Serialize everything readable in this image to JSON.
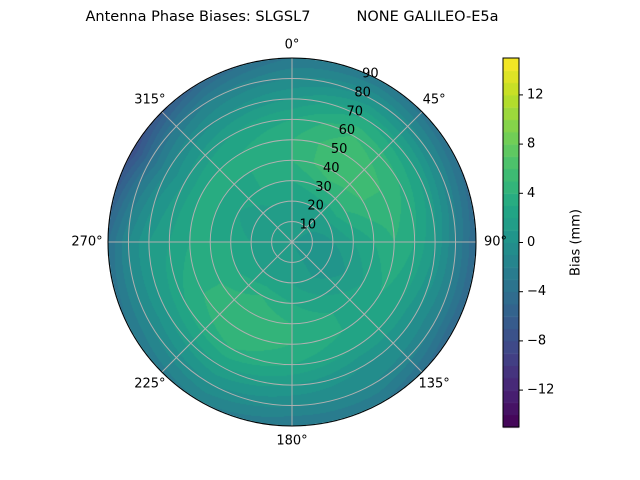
{
  "chart_data": {
    "type": "heatmap",
    "subtype": "polar-filled-contour",
    "title": "Antenna Phase Biases: SLGSL7          NONE GALILEO-E5a",
    "colormap": "viridis",
    "azimuth_direction": "clockwise",
    "azimuth_zero": "north",
    "azimuth_ticks": [
      "0°",
      "45°",
      "90°",
      "135°",
      "180°",
      "225°",
      "270°",
      "315°"
    ],
    "radial_ticks": [
      "10",
      "20",
      "30",
      "40",
      "50",
      "60",
      "70",
      "80",
      "90"
    ],
    "radial_range": [
      0,
      90
    ],
    "grid": true,
    "azimuth_deg": [
      0,
      30,
      60,
      90,
      120,
      150,
      180,
      210,
      240,
      270,
      300,
      330
    ],
    "zenith_deg": [
      0,
      10,
      20,
      30,
      40,
      50,
      60,
      70,
      80,
      90
    ],
    "values_mm": [
      [
        1,
        1,
        2,
        3,
        4,
        4,
        3,
        1,
        -1,
        -3
      ],
      [
        1,
        1,
        2,
        4,
        6,
        6,
        5,
        3,
        0,
        -3
      ],
      [
        1,
        1,
        2,
        4,
        5,
        5,
        4,
        2,
        -1,
        -4
      ],
      [
        1,
        0,
        1,
        2,
        3,
        4,
        3,
        1,
        -2,
        -5
      ],
      [
        1,
        0,
        0,
        1,
        2,
        3,
        2,
        0,
        -2,
        -5
      ],
      [
        1,
        1,
        1,
        2,
        3,
        3,
        2,
        0,
        -1,
        -3
      ],
      [
        1,
        1,
        2,
        3,
        4,
        4,
        3,
        1,
        -1,
        -3
      ],
      [
        1,
        1,
        2,
        4,
        5,
        5,
        4,
        2,
        0,
        -2
      ],
      [
        1,
        1,
        2,
        3,
        4,
        4,
        3,
        1,
        -1,
        -3
      ],
      [
        1,
        1,
        2,
        3,
        3,
        3,
        2,
        1,
        -1,
        -4
      ],
      [
        1,
        1,
        1,
        2,
        3,
        3,
        1,
        -1,
        -4,
        -8
      ],
      [
        1,
        1,
        2,
        3,
        3,
        3,
        2,
        0,
        -2,
        -5
      ]
    ],
    "colorbar": {
      "label": "Bias (mm)",
      "range": [
        -15,
        15
      ],
      "levels_step": 1,
      "ticks": [
        "−12",
        "−8",
        "−4",
        "0",
        "4",
        "8",
        "12"
      ],
      "tick_values": [
        -12,
        -8,
        -4,
        0,
        4,
        8,
        12
      ]
    }
  }
}
